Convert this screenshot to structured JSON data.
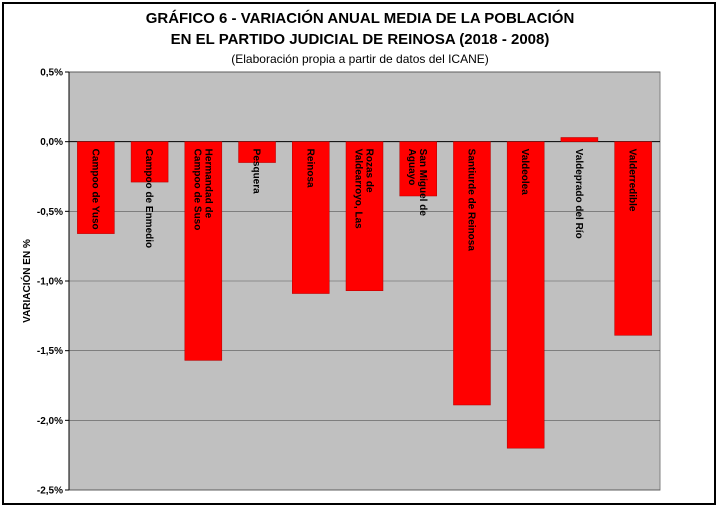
{
  "chart_data": {
    "type": "bar",
    "title": "GRÁFICO 6 - VARIACIÓN ANUAL MEDIA DE LA POBLACIÓN",
    "title_line2": "EN EL PARTIDO JUDICIAL DE REINOSA (2018 - 2008)",
    "subtitle": "(Elaboración propia a partir de datos del ICANE)",
    "ylabel": "VARIACIÓN EN %",
    "ylim": [
      -2.5,
      0.5
    ],
    "yticks": [
      0.5,
      0.0,
      -0.5,
      -1.0,
      -1.5,
      -2.0,
      -2.5
    ],
    "ytick_labels": [
      "0,5%",
      "0,0%",
      "-0,5%",
      "-1,0%",
      "-1,5%",
      "-2,0%",
      "-2,5%"
    ],
    "grid": true,
    "plot_background": "#c0c0c0",
    "bar_color": "#ff0000",
    "categories": [
      "Campoo de Yuso",
      "Campoo de Enmedio",
      "Hermandad de Campoo de Suso",
      "Pesquera",
      "Reinosa",
      "Rozas de Valdearroyo, Las",
      "San Miguel de Aguayo",
      "Santiurde de Reinosa",
      "Valdeolea",
      "Valdeprado del Río",
      "Valderredible"
    ],
    "category_lines": [
      [
        "Campoo de Yuso"
      ],
      [
        "Campoo de Enmedio"
      ],
      [
        "Hermandad de",
        "Campoo de Suso"
      ],
      [
        "Pesquera"
      ],
      [
        "Reinosa"
      ],
      [
        "Rozas de",
        "Valdearroyo, Las"
      ],
      [
        "San Miguel de",
        "Aguayo"
      ],
      [
        "Santiurde de Reinosa"
      ],
      [
        "Valdeolea"
      ],
      [
        "Valdeprado del Río"
      ],
      [
        "Valderredible"
      ]
    ],
    "values": [
      -0.66,
      -0.29,
      -1.57,
      -0.15,
      -1.09,
      -1.07,
      -0.39,
      -1.89,
      -2.2,
      0.03,
      -1.39
    ]
  }
}
